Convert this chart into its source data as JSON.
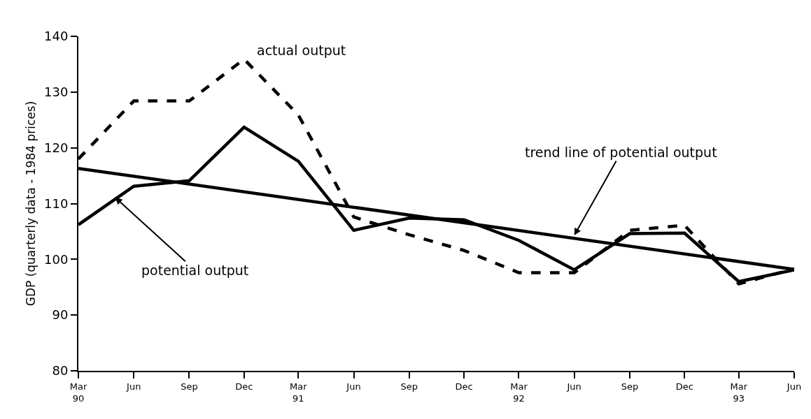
{
  "chart_data": {
    "type": "line",
    "ylabel": "GDP (quarterly data - 1984 prices)",
    "x": [
      "1990-03",
      "1990-06",
      "1990-09",
      "1990-12",
      "1991-03",
      "1991-06",
      "1991-09",
      "1991-12",
      "1992-03",
      "1992-06",
      "1992-09",
      "1992-12",
      "1993-03",
      "1993-06"
    ],
    "series": [
      {
        "color": "#000000",
        "line_style": "dashed",
        "values": [
          118,
          128.4,
          128.4,
          135.9,
          125.9,
          107.6,
          104.4,
          101.6,
          97.6,
          97.6,
          105.2,
          106.1,
          95.6,
          98.3
        ]
      },
      {
        "color": "#000000",
        "line_style": "solid",
        "values": [
          106.2,
          113.1,
          114.1,
          123.7,
          117.6,
          105.2,
          107.4,
          107.1,
          103.4,
          98.1,
          104.6,
          104.7,
          96.0,
          98.1
        ]
      },
      {
        "color": "#000000",
        "line_style": "solid",
        "x": [
          "1990-03",
          "1993-06"
        ],
        "values": [
          116.3,
          98.2
        ]
      }
    ],
    "xlim": [
      "1990-03",
      "1993-06"
    ],
    "xticks": [
      {
        "value": "1990-03",
        "label": "Mar\n90"
      },
      {
        "value": "1990-06",
        "label": "Jun"
      },
      {
        "value": "1990-09",
        "label": "Sep"
      },
      {
        "value": "1990-12",
        "label": "Dec"
      },
      {
        "value": "1991-03",
        "label": "Mar\n91"
      },
      {
        "value": "1991-06",
        "label": "Jun"
      },
      {
        "value": "1991-09",
        "label": "Sep"
      },
      {
        "value": "1991-12",
        "label": "Dec"
      },
      {
        "value": "1992-03",
        "label": "Mar\n92"
      },
      {
        "value": "1992-06",
        "label": "Jun"
      },
      {
        "value": "1992-09",
        "label": "Sep"
      },
      {
        "value": "1992-12",
        "label": "Dec"
      },
      {
        "value": "1993-03",
        "label": "Mar\n93"
      },
      {
        "value": "1993-06",
        "label": "Jun"
      }
    ],
    "ylim": [
      80,
      140
    ],
    "yticks": [
      80,
      90,
      100,
      110,
      120,
      130,
      140
    ],
    "marker": "none",
    "annotations": [
      "actual output",
      {
        "text": "potential output",
        "x": "1990-05",
        "y": 111.1
      },
      {
        "text": "trend line of potential output",
        "x": "1992-06",
        "y": 104.3
      }
    ]
  }
}
